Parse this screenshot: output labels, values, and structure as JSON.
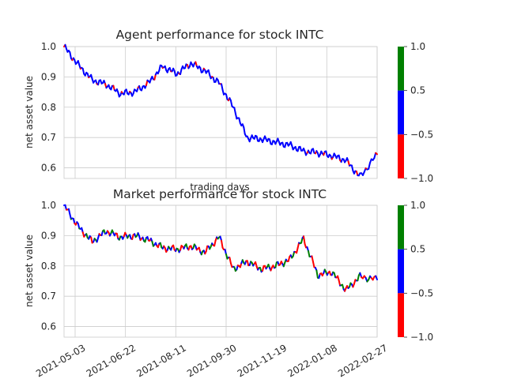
{
  "chart_data": [
    {
      "type": "line",
      "title": "Agent performance for stock INTC",
      "xlabel": "trading days",
      "ylabel": "net asset value",
      "ylim": [
        0.565,
        1.0
      ],
      "yticks": [
        "0.6",
        "0.7",
        "0.8",
        "0.9",
        "1.0"
      ],
      "grid": true,
      "color_segments": "line colored by action value: red = -1, blue = 0, green = 1",
      "colorbar": {
        "ticks": [
          "−1.0",
          "−0.5",
          "0.5",
          "1.0"
        ],
        "colors": [
          "#ff0000",
          "#0000ff",
          "#008000"
        ]
      },
      "x": [
        "2021-04-22",
        "2021-05-06",
        "2021-05-20",
        "2021-06-03",
        "2021-06-17",
        "2021-07-01",
        "2021-07-15",
        "2021-07-29",
        "2021-08-12",
        "2021-08-26",
        "2021-09-09",
        "2021-09-23",
        "2021-10-07",
        "2021-10-21",
        "2021-11-04",
        "2021-11-18",
        "2021-12-02",
        "2021-12-16",
        "2021-12-30",
        "2022-01-13",
        "2022-01-27",
        "2022-02-10",
        "2022-02-27"
      ],
      "values": [
        1.0,
        0.94,
        0.89,
        0.875,
        0.845,
        0.85,
        0.88,
        0.935,
        0.91,
        0.945,
        0.92,
        0.88,
        0.8,
        0.7,
        0.695,
        0.685,
        0.675,
        0.655,
        0.65,
        0.64,
        0.625,
        0.57,
        0.645
      ]
    },
    {
      "type": "line",
      "title": "Market performance for stock INTC",
      "xlabel": "",
      "ylabel": "net asset value",
      "ylim": [
        0.565,
        1.0
      ],
      "yticks": [
        "0.6",
        "0.7",
        "0.8",
        "0.9",
        "1.0"
      ],
      "grid": true,
      "color_segments": "line colored by action value: red = -1, blue = 0, green = 1",
      "colorbar": {
        "ticks": [
          "−1.0",
          "−0.5",
          "0.5",
          "1.0"
        ],
        "colors": [
          "#ff0000",
          "#0000ff",
          "#008000"
        ]
      },
      "xticks": [
        "2021-05-03",
        "2021-06-22",
        "2021-08-11",
        "2021-09-30",
        "2021-11-19",
        "2022-01-08",
        "2022-02-27"
      ],
      "x": [
        "2021-04-22",
        "2021-05-06",
        "2021-05-20",
        "2021-06-03",
        "2021-06-17",
        "2021-07-01",
        "2021-07-15",
        "2021-07-29",
        "2021-08-12",
        "2021-08-26",
        "2021-09-09",
        "2021-09-23",
        "2021-10-07",
        "2021-10-21",
        "2021-11-04",
        "2021-11-18",
        "2021-12-02",
        "2021-12-16",
        "2021-12-30",
        "2022-01-13",
        "2022-01-27",
        "2022-02-10",
        "2022-02-27"
      ],
      "values": [
        1.0,
        0.93,
        0.88,
        0.915,
        0.895,
        0.9,
        0.885,
        0.86,
        0.855,
        0.865,
        0.845,
        0.895,
        0.79,
        0.815,
        0.79,
        0.8,
        0.82,
        0.89,
        0.77,
        0.78,
        0.72,
        0.765,
        0.755
      ]
    }
  ]
}
